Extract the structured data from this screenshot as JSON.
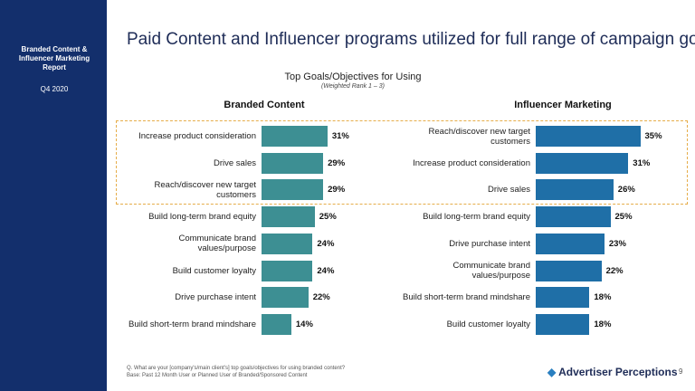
{
  "sidebar": {
    "title": "Branded Content & Influencer Marketing Report",
    "date": "Q4 2020"
  },
  "title": "Paid Content and Influencer programs utilized for full range of campaign goals",
  "subtitle": "Top Goals/Objectives for Using",
  "subtitle_note": "(Weighted Rank 1 – 3)",
  "chart_data": [
    {
      "type": "bar",
      "orientation": "horizontal",
      "title": "Branded Content",
      "color": "#3d8f93",
      "categories": [
        "Increase product consideration",
        "Drive sales",
        "Reach/discover new target customers",
        "Build long-term brand equity",
        "Communicate brand values/purpose",
        "Build customer loyalty",
        "Drive purchase intent",
        "Build short-term brand mindshare"
      ],
      "values": [
        31,
        29,
        29,
        25,
        24,
        24,
        22,
        14
      ],
      "value_labels": [
        "31%",
        "29%",
        "29%",
        "25%",
        "24%",
        "24%",
        "22%",
        "14%"
      ]
    },
    {
      "type": "bar",
      "orientation": "horizontal",
      "title": "Influencer Marketing",
      "color": "#1f6fa7",
      "categories": [
        "Reach/discover new target customers",
        "Increase product consideration",
        "Drive sales",
        "Build long-term brand equity",
        "Drive purchase intent",
        "Communicate brand values/purpose",
        "Build short-term brand mindshare",
        "Build customer loyalty"
      ],
      "values": [
        35,
        31,
        26,
        25,
        23,
        22,
        18,
        18
      ],
      "value_labels": [
        "35%",
        "31%",
        "26%",
        "25%",
        "23%",
        "22%",
        "18%",
        "18%"
      ]
    }
  ],
  "footnote": [
    "Q. What are your [company's/main client's] top goals/objectives for using branded content?",
    "Base: Past 12 Month User or Planned User of Branded/Sponsored Content"
  ],
  "logo": "Advertiser Perceptions",
  "page_number": "9"
}
